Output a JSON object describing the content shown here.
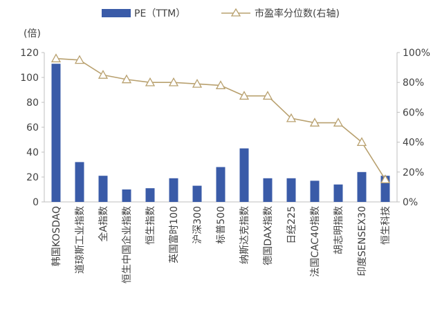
{
  "chart_data": {
    "type": "bar+line",
    "title": "",
    "y_unit_label": "(倍)",
    "categories": [
      "韩国KOSDAQ",
      "道琼斯工业指数",
      "全A指数",
      "恒生中国企业指数",
      "恒生指数",
      "英国富时100",
      "沪深300",
      "标普500",
      "纳斯达克指数",
      "德国DAX指数",
      "日经225",
      "法国CAC40指数",
      "胡志明指数",
      "印度SENSEX30",
      "恒生科技"
    ],
    "series": [
      {
        "name": "PE（TTM）",
        "type": "bar",
        "axis": "left",
        "color": "#3a5ba8",
        "values": [
          111,
          32,
          21,
          10,
          11,
          19,
          13,
          28,
          43,
          19,
          19,
          17,
          14,
          24,
          21
        ]
      },
      {
        "name": "市盈率分位数(右轴)",
        "type": "line",
        "axis": "right",
        "color": "#b8a06e",
        "marker": "triangle",
        "values": [
          0.96,
          0.95,
          0.85,
          0.82,
          0.8,
          0.8,
          0.79,
          0.78,
          0.71,
          0.71,
          0.56,
          0.53,
          0.53,
          0.4,
          0.15
        ]
      }
    ],
    "y_left": {
      "min": 0,
      "max": 120,
      "ticks": [
        "0",
        "20",
        "40",
        "60",
        "80",
        "100",
        "120"
      ]
    },
    "y_right": {
      "min": 0,
      "max": 1,
      "ticks": [
        "0%",
        "20%",
        "40%",
        "60%",
        "80%",
        "100%"
      ]
    },
    "legend_position": "top",
    "grid": false
  }
}
